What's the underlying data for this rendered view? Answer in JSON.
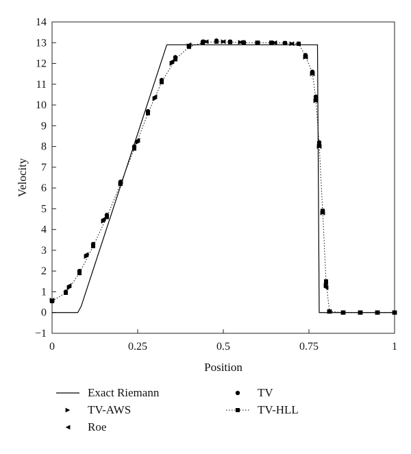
{
  "chart_data": {
    "type": "line",
    "title": "",
    "xlabel": "Position",
    "ylabel": "Velocity",
    "xlim": [
      0,
      1
    ],
    "ylim": [
      -1,
      14
    ],
    "x_ticks": [
      0,
      0.25,
      0.5,
      0.75,
      1
    ],
    "x_tick_labels": [
      "0",
      "0.25",
      "0.5",
      "0.75",
      "1"
    ],
    "y_ticks": [
      -1,
      0,
      1,
      2,
      3,
      4,
      5,
      6,
      7,
      8,
      9,
      10,
      11,
      12,
      13,
      14
    ],
    "y_tick_labels": [
      "−1",
      "0",
      "1",
      "2",
      "3",
      "4",
      "5",
      "6",
      "7",
      "8",
      "9",
      "10",
      "11",
      "12",
      "13",
      "14"
    ],
    "grid": false,
    "legend_position": "below",
    "series": [
      {
        "name": "Exact Riemann",
        "style": "solid-line",
        "color": "#000000",
        "x": [
          0,
          0.075,
          0.085,
          0.335,
          0.345,
          0.775,
          0.78,
          1.0
        ],
        "y": [
          0,
          0,
          0.3,
          12.9,
          12.9,
          12.9,
          0,
          0
        ]
      },
      {
        "name": "TV",
        "style": "circle-markers",
        "color": "#000000",
        "x": [
          0,
          0.04,
          0.08,
          0.12,
          0.16,
          0.2,
          0.24,
          0.28,
          0.32,
          0.36,
          0.4,
          0.44,
          0.48,
          0.52,
          0.56,
          0.6,
          0.64,
          0.68,
          0.72,
          0.74,
          0.76,
          0.77,
          0.78,
          0.79,
          0.8,
          0.81,
          0.85,
          0.9,
          0.95,
          1.0
        ],
        "y": [
          0.55,
          1.0,
          2.0,
          3.3,
          4.7,
          6.3,
          8.0,
          9.7,
          11.2,
          12.3,
          12.85,
          13.05,
          13.1,
          13.05,
          13.02,
          13.0,
          13.0,
          12.98,
          12.95,
          12.4,
          11.6,
          10.4,
          8.2,
          4.9,
          1.4,
          0.05,
          0,
          0,
          0,
          0
        ]
      },
      {
        "name": "TV-AWS",
        "style": "right-triangle-markers",
        "color": "#000000",
        "x": [
          0,
          0.05,
          0.1,
          0.15,
          0.2,
          0.25,
          0.3,
          0.35,
          0.4,
          0.45,
          0.5,
          0.55,
          0.6,
          0.65,
          0.7,
          0.74,
          0.76,
          0.77,
          0.78,
          0.79,
          0.8,
          0.81,
          0.85,
          0.9,
          0.95,
          1.0
        ],
        "y": [
          0.6,
          1.2,
          2.7,
          4.4,
          6.2,
          8.2,
          10.3,
          12.0,
          12.85,
          13.05,
          13.05,
          13.02,
          13.0,
          13.0,
          12.95,
          12.3,
          11.5,
          10.2,
          8.0,
          4.8,
          1.3,
          0.05,
          0,
          0,
          0,
          0
        ]
      },
      {
        "name": "TV-HLL",
        "style": "dotted-line-square-markers",
        "color": "#000000",
        "x": [
          0,
          0.04,
          0.08,
          0.12,
          0.16,
          0.2,
          0.24,
          0.28,
          0.32,
          0.36,
          0.4,
          0.44,
          0.48,
          0.52,
          0.56,
          0.6,
          0.64,
          0.68,
          0.72,
          0.74,
          0.76,
          0.77,
          0.78,
          0.79,
          0.8,
          0.81,
          0.85,
          0.9,
          0.95,
          1.0
        ],
        "y": [
          0.55,
          0.95,
          1.9,
          3.2,
          4.6,
          6.2,
          7.9,
          9.6,
          11.1,
          12.2,
          12.8,
          13.0,
          13.05,
          13.03,
          13.0,
          13.0,
          13.0,
          12.98,
          12.95,
          12.35,
          11.55,
          10.3,
          8.1,
          4.9,
          1.5,
          0.05,
          0,
          0,
          0,
          0
        ]
      },
      {
        "name": "Roe",
        "style": "left-triangle-markers",
        "color": "#000000",
        "x": [
          0,
          0.05,
          0.1,
          0.15,
          0.2,
          0.25,
          0.3,
          0.35,
          0.4,
          0.45,
          0.5,
          0.55,
          0.6,
          0.65,
          0.7,
          0.74,
          0.76,
          0.77,
          0.78,
          0.79,
          0.8,
          0.81,
          0.85,
          0.9,
          0.95,
          1.0
        ],
        "y": [
          0.6,
          1.3,
          2.8,
          4.5,
          6.3,
          8.3,
          10.4,
          12.1,
          12.9,
          13.05,
          13.05,
          13.02,
          13.0,
          13.0,
          12.95,
          12.3,
          11.5,
          10.2,
          8.0,
          4.8,
          1.2,
          0.05,
          0,
          0,
          0,
          0
        ]
      }
    ]
  }
}
